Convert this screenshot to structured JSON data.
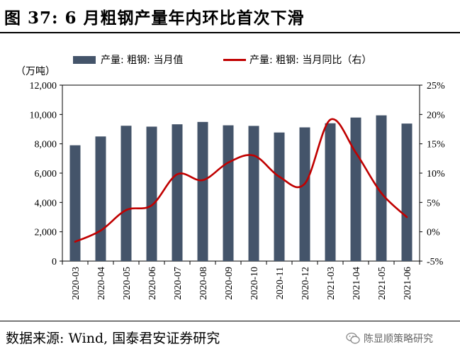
{
  "header": {
    "title": "图 37:  6 月粗钢产量年内环比首次下滑"
  },
  "footer": {
    "source": "数据来源:  Wind, 国泰君安证券研究",
    "watermark": "陈显顺策略研究"
  },
  "chart_data": {
    "type": "bar+line",
    "title": "6 月粗钢产量年内环比首次下滑",
    "y_unit_label": "（万吨）",
    "categories": [
      "2020-03",
      "2020-04",
      "2020-05",
      "2020-06",
      "2020-07",
      "2020-08",
      "2020-09",
      "2020-10",
      "2020-11",
      "2020-12",
      "2021-03",
      "2021-04",
      "2021-05",
      "2021-06"
    ],
    "series": [
      {
        "name": "产量: 粗钢: 当月值",
        "type": "bar",
        "axis": "left",
        "color": "#44546a",
        "values": [
          7900,
          8500,
          9230,
          9170,
          9330,
          9490,
          9260,
          9220,
          8770,
          9120,
          9400,
          9790,
          9940,
          9380
        ]
      },
      {
        "name": "产量: 粗钢: 当月同比（右）",
        "type": "line",
        "axis": "right",
        "color": "#c00000",
        "values": [
          -1.7,
          0.2,
          3.7,
          4.5,
          9.8,
          8.8,
          11.8,
          13.0,
          9.4,
          8.2,
          19.1,
          13.5,
          6.6,
          2.5
        ]
      }
    ],
    "y_left": {
      "min": 0,
      "max": 12000,
      "ticks": [
        0,
        2000,
        4000,
        6000,
        8000,
        10000,
        12000
      ],
      "tick_labels": [
        "0",
        "2,000",
        "4,000",
        "6,000",
        "8,000",
        "10,000",
        "12,000"
      ]
    },
    "y_right": {
      "min": -5,
      "max": 25,
      "ticks": [
        -5,
        0,
        5,
        10,
        15,
        20,
        25
      ],
      "tick_labels": [
        "-5%",
        "0%",
        "5%",
        "10%",
        "15%",
        "20%",
        "25%"
      ]
    },
    "legend_position": "top"
  }
}
